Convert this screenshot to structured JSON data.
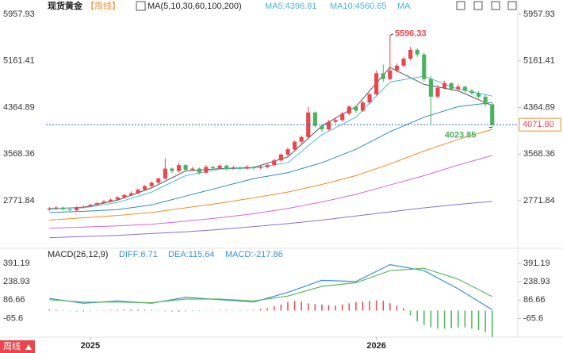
{
  "chart_data": [
    {
      "type": "candlestick",
      "title": "现货黄金",
      "period": "【周线】",
      "indicator": "MA(5,10,30,60,100,200)",
      "legend_texts": [
        "MA5:4396.81",
        "MA10:4560.65",
        "MA"
      ],
      "xlim": [
        -0.5,
        65.5
      ],
      "xticks": [
        {
          "value": 6,
          "label": "2025"
        },
        {
          "value": 48,
          "label": "2026"
        }
      ],
      "ylim": [
        2066.8,
        6093.5
      ],
      "yticks": [
        5957.93,
        5161.41,
        4364.89,
        3568.36,
        2771.84
      ],
      "up_color": "#e8474d",
      "down_color": "#4cb25f",
      "open": [
        2620,
        2640,
        2655,
        2625,
        2610,
        2660,
        2670,
        2700,
        2730,
        2760,
        2790,
        2830,
        2870,
        2900,
        2960,
        3020,
        3080,
        3150,
        3320,
        3280,
        3380,
        3300,
        3320,
        3250,
        3350,
        3330,
        3370,
        3320,
        3340,
        3320,
        3350,
        3330,
        3345,
        3380,
        3460,
        3560,
        3650,
        3780,
        3860,
        4280,
        4050,
        3990,
        4120,
        4150,
        4260,
        4380,
        4310,
        4450,
        4590,
        4950,
        4850,
        5000,
        5080,
        5200,
        5350,
        5270,
        4850,
        4550,
        4700,
        4780,
        4680,
        4720,
        4650,
        4610,
        4550,
        4420
      ],
      "high": [
        2665,
        2680,
        2670,
        2640,
        2675,
        2690,
        2720,
        2750,
        2780,
        2810,
        2850,
        2890,
        2930,
        2980,
        3040,
        3100,
        3170,
        3500,
        3340,
        3420,
        3400,
        3350,
        3340,
        3380,
        3370,
        3400,
        3390,
        3370,
        3360,
        3380,
        3370,
        3370,
        3400,
        3490,
        3580,
        3680,
        3800,
        3890,
        4380,
        4300,
        4080,
        4150,
        4200,
        4290,
        4400,
        4400,
        4480,
        4620,
        5000,
        5100,
        5596.33,
        5120,
        5230,
        5400,
        5380,
        5300,
        4900,
        4750,
        4820,
        4800,
        4760,
        4740,
        4680,
        4640,
        4580,
        4440
      ],
      "low": [
        2600,
        2610,
        2600,
        2583.01,
        2590,
        2640,
        2660,
        2690,
        2720,
        2750,
        2780,
        2810,
        2850,
        2880,
        2940,
        3000,
        3060,
        3130,
        3240,
        3250,
        3270,
        3280,
        3220,
        3230,
        3300,
        3310,
        3290,
        3300,
        3290,
        3300,
        3300,
        3310,
        3330,
        3360,
        3440,
        3530,
        3620,
        3740,
        3840,
        4020,
        3950,
        3970,
        4090,
        4120,
        4230,
        4270,
        4290,
        4420,
        4570,
        4800,
        4830,
        4960,
        5050,
        5170,
        5230,
        4800,
        4080,
        4520,
        4680,
        4650,
        4660,
        4620,
        4580,
        4520,
        4380,
        4023.85
      ],
      "close": [
        2640,
        2655,
        2625,
        2610,
        2660,
        2670,
        2700,
        2730,
        2760,
        2790,
        2830,
        2870,
        2900,
        2960,
        3020,
        3080,
        3150,
        3320,
        3280,
        3380,
        3300,
        3320,
        3250,
        3350,
        3330,
        3370,
        3320,
        3340,
        3320,
        3350,
        3330,
        3345,
        3380,
        3460,
        3560,
        3650,
        3780,
        3860,
        4280,
        4050,
        3990,
        4120,
        4150,
        4260,
        4380,
        4310,
        4450,
        4590,
        4950,
        4850,
        5000,
        5080,
        5200,
        5350,
        5270,
        4850,
        4550,
        4700,
        4780,
        4680,
        4720,
        4650,
        4610,
        4550,
        4420,
        4071.8
      ],
      "ma_x": [
        0,
        5,
        10,
        15,
        20,
        25,
        30,
        35,
        40,
        45,
        50,
        55,
        60,
        65
      ],
      "series": [
        {
          "color": "#555555",
          "values": [
            2630,
            2660,
            2780,
            2990,
            3280,
            3320,
            3340,
            3520,
            4050,
            4380,
            5050,
            4760,
            4650,
            4396.81
          ]
        },
        {
          "color": "#4bbfd6",
          "values": [
            2640,
            2650,
            2740,
            2920,
            3200,
            3310,
            3330,
            3420,
            3900,
            4200,
            4800,
            4900,
            4680,
            4560.65
          ]
        },
        {
          "color": "#2a8fb8",
          "values": [
            2570,
            2590,
            2620,
            2700,
            2850,
            3000,
            3150,
            3250,
            3420,
            3650,
            3950,
            4200,
            4380,
            4450
          ]
        },
        {
          "color": "#f08c2a",
          "values": [
            2440,
            2480,
            2520,
            2570,
            2650,
            2730,
            2820,
            2920,
            3050,
            3200,
            3400,
            3620,
            3820,
            3990
          ]
        },
        {
          "color": "#d966d0",
          "values": [
            2300,
            2320,
            2340,
            2370,
            2420,
            2480,
            2550,
            2640,
            2750,
            2880,
            3040,
            3200,
            3380,
            3545
          ]
        },
        {
          "color": "#8a6fd6",
          "values": [
            2140,
            2160,
            2180,
            2210,
            2240,
            2280,
            2330,
            2380,
            2440,
            2510,
            2580,
            2650,
            2710,
            2760
          ]
        }
      ],
      "annotations": [
        {
          "index": 50,
          "value": 5596.33,
          "label": "5596.33",
          "color": "#e8474d"
        },
        {
          "index": 65,
          "value": 4023.85,
          "label": "4023.85",
          "color": "#4cb25f"
        }
      ],
      "last_price": {
        "value": 4071.8,
        "label": "4071.80"
      },
      "badge": "周线"
    },
    {
      "type": "macd",
      "title": "MACD(26,12,9)",
      "legend_texts": [
        "DIFF:6.71",
        "DEA:115.64",
        "MACD:-217.86"
      ],
      "xlim": [
        -0.5,
        65.5
      ],
      "ylim": [
        -220,
        502
      ],
      "yticks": [
        391.19,
        238.93,
        86.66,
        -65.6
      ],
      "ma_x": [
        0,
        5,
        10,
        15,
        20,
        25,
        30,
        35,
        40,
        45,
        50,
        55,
        60,
        65
      ],
      "series": [
        {
          "name": "DIFF",
          "color": "#3a8fd8",
          "values": [
            100,
            60,
            80,
            60,
            110,
            90,
            70,
            150,
            250,
            240,
            380,
            330,
            180,
            6.71
          ]
        },
        {
          "name": "DEA",
          "color": "#5cb85c",
          "values": [
            90,
            70,
            70,
            65,
            95,
            95,
            80,
            120,
            200,
            230,
            330,
            350,
            260,
            115.64
          ]
        }
      ],
      "histogram": [
        8,
        6,
        4,
        -4,
        -6,
        -8,
        -5,
        -3,
        2,
        4,
        6,
        8,
        10,
        9,
        7,
        5,
        -3,
        -6,
        -8,
        -10,
        -7,
        -5,
        -3,
        -2,
        2,
        4,
        3,
        -2,
        -4,
        -3,
        5,
        12,
        20,
        35,
        50,
        70,
        80,
        75,
        60,
        55,
        50,
        45,
        40,
        50,
        60,
        70,
        75,
        80,
        85,
        80,
        60,
        40,
        20,
        -40,
        -90,
        -120,
        -140,
        -150,
        -150,
        -145,
        -140,
        -140,
        -150,
        -160,
        -180,
        -217.86
      ]
    }
  ]
}
